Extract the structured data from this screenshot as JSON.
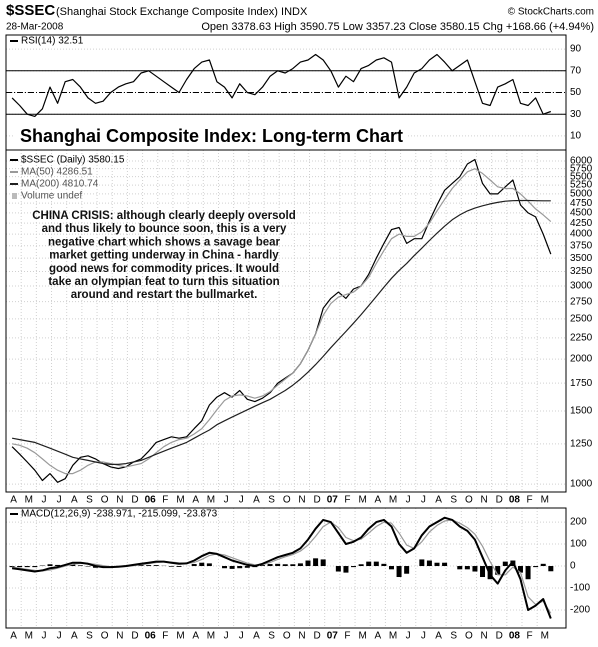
{
  "header": {
    "symbol": "$SSEC",
    "name": "(Shanghai Stock Exchange Composite Index) INDX",
    "source": "© StockCharts.com",
    "date": "28-Mar-2008",
    "quote": "Open 3378.63 High 3590.75 Low 3357.23 Close 3580.15 Chg +168.66 (+4.94%)"
  },
  "chart_data": [
    {
      "type": "line",
      "label": "RSI(14) 32.51",
      "xlim": [
        0,
        36.9
      ],
      "ylim": [
        -3,
        103
      ],
      "yticks": [
        10,
        30,
        50,
        70,
        90
      ],
      "reference_lines": [
        70,
        50,
        30
      ],
      "x": [
        0.4,
        0.9,
        1.4,
        1.9,
        2.4,
        2.9,
        3.4,
        3.9,
        4.4,
        4.9,
        5.4,
        5.9,
        6.4,
        6.9,
        7.4,
        7.9,
        8.4,
        8.9,
        9.4,
        9.9,
        10.4,
        10.9,
        11.4,
        11.9,
        12.4,
        12.9,
        13.4,
        13.9,
        14.4,
        14.9,
        15.4,
        15.9,
        16.4,
        16.9,
        17.4,
        17.9,
        18.4,
        18.9,
        19.4,
        19.9,
        20.4,
        20.9,
        21.4,
        21.9,
        22.4,
        22.9,
        23.4,
        23.9,
        24.4,
        24.9,
        25.4,
        25.9,
        26.4,
        26.9,
        27.4,
        27.9,
        28.4,
        28.9,
        29.4,
        29.9,
        30.4,
        30.9,
        31.4,
        31.9,
        32.4,
        32.9,
        33.4,
        33.9,
        34.4,
        34.9,
        35.4,
        35.9
      ],
      "series": [
        {
          "color": "#000000",
          "values": [
            45,
            38,
            30,
            28,
            35,
            55,
            40,
            60,
            62,
            55,
            45,
            40,
            42,
            50,
            55,
            58,
            60,
            68,
            70,
            65,
            60,
            55,
            50,
            62,
            72,
            78,
            80,
            60,
            55,
            45,
            58,
            50,
            48,
            55,
            65,
            70,
            68,
            72,
            78,
            80,
            85,
            80,
            70,
            55,
            65,
            60,
            72,
            75,
            80,
            82,
            78,
            45,
            55,
            68,
            72,
            80,
            85,
            78,
            70,
            75,
            80,
            60,
            40,
            38,
            55,
            58,
            62,
            40,
            38,
            45,
            30,
            32.51
          ]
        }
      ]
    },
    {
      "type": "line",
      "title": "Shanghai Composite Index: Long-term Chart",
      "log_scale": true,
      "xlim": [
        0,
        36.9
      ],
      "ylim": [
        957,
        6377
      ],
      "yticks": [
        1000,
        1250,
        1500,
        1750,
        2000,
        2250,
        2500,
        2750,
        3000,
        3250,
        3500,
        3750,
        4000,
        4250,
        4500,
        4750,
        5000,
        5250,
        5500,
        5750,
        6000
      ],
      "xticks": [
        {
          "value": 0,
          "label": "A"
        },
        {
          "value": 1,
          "label": "M"
        },
        {
          "value": 2,
          "label": "J"
        },
        {
          "value": 3,
          "label": "J"
        },
        {
          "value": 4,
          "label": "A"
        },
        {
          "value": 5,
          "label": "S"
        },
        {
          "value": 6,
          "label": "O"
        },
        {
          "value": 7,
          "label": "N"
        },
        {
          "value": 8,
          "label": "D"
        },
        {
          "value": 9,
          "label": "06"
        },
        {
          "value": 10,
          "label": "F"
        },
        {
          "value": 11,
          "label": "M"
        },
        {
          "value": 12,
          "label": "A"
        },
        {
          "value": 13,
          "label": "M"
        },
        {
          "value": 14,
          "label": "J"
        },
        {
          "value": 15,
          "label": "J"
        },
        {
          "value": 16,
          "label": "A"
        },
        {
          "value": 17,
          "label": "S"
        },
        {
          "value": 18,
          "label": "O"
        },
        {
          "value": 19,
          "label": "N"
        },
        {
          "value": 20,
          "label": "D"
        },
        {
          "value": 21,
          "label": "07"
        },
        {
          "value": 22,
          "label": "F"
        },
        {
          "value": 23,
          "label": "M"
        },
        {
          "value": 24,
          "label": "A"
        },
        {
          "value": 25,
          "label": "M"
        },
        {
          "value": 26,
          "label": "J"
        },
        {
          "value": 27,
          "label": "J"
        },
        {
          "value": 28,
          "label": "A"
        },
        {
          "value": 29,
          "label": "S"
        },
        {
          "value": 30,
          "label": "O"
        },
        {
          "value": 31,
          "label": "N"
        },
        {
          "value": 32,
          "label": "D"
        },
        {
          "value": 33,
          "label": "08"
        },
        {
          "value": 34,
          "label": "F"
        },
        {
          "value": 35,
          "label": "M"
        }
      ],
      "annotation": [
        "CHINA CRISIS: although clearly deeply oversold",
        "and thus likely to bounce soon, this is a very",
        "negative chart which shows a savage bear",
        "market getting underway in China - hardly",
        "good news for commodity prices. It would",
        "take an olympian feat to turn this situation",
        "around and restart the bullmarket."
      ],
      "legend_extra": "Volume undef",
      "x": [
        0.4,
        0.9,
        1.4,
        1.9,
        2.4,
        2.9,
        3.4,
        3.9,
        4.4,
        4.9,
        5.4,
        5.9,
        6.4,
        6.9,
        7.4,
        7.9,
        8.4,
        8.9,
        9.4,
        9.9,
        10.4,
        10.9,
        11.4,
        11.9,
        12.4,
        12.9,
        13.4,
        13.9,
        14.4,
        14.9,
        15.4,
        15.9,
        16.4,
        16.9,
        17.4,
        17.9,
        18.4,
        18.9,
        19.4,
        19.9,
        20.4,
        20.9,
        21.4,
        21.9,
        22.4,
        22.9,
        23.4,
        23.9,
        24.4,
        24.9,
        25.4,
        25.9,
        26.4,
        26.9,
        27.4,
        27.9,
        28.4,
        28.9,
        29.4,
        29.9,
        30.4,
        30.9,
        31.4,
        31.9,
        32.4,
        32.9,
        33.4,
        33.9,
        34.4,
        34.9,
        35.4,
        35.9
      ],
      "series": [
        {
          "name": "$SSEC (Daily) 3580.15",
          "color": "#000000",
          "values": [
            1230,
            1180,
            1130,
            1080,
            1020,
            1060,
            1010,
            1030,
            1110,
            1160,
            1170,
            1150,
            1120,
            1100,
            1090,
            1100,
            1130,
            1150,
            1200,
            1260,
            1280,
            1300,
            1290,
            1300,
            1360,
            1420,
            1550,
            1620,
            1660,
            1620,
            1680,
            1600,
            1580,
            1610,
            1660,
            1750,
            1800,
            1850,
            1950,
            2100,
            2300,
            2650,
            2800,
            2900,
            2800,
            2950,
            3000,
            3200,
            3500,
            3800,
            4100,
            4150,
            3800,
            3900,
            3900,
            4300,
            4700,
            5100,
            5300,
            5500,
            5900,
            6050,
            5300,
            5000,
            5000,
            5200,
            5400,
            4700,
            4500,
            4400,
            4000,
            3580.15
          ]
        },
        {
          "name": "MA(50) 4286.51",
          "color": "#9a9a9a",
          "values": [
            1250,
            1240,
            1220,
            1190,
            1150,
            1110,
            1080,
            1060,
            1060,
            1080,
            1110,
            1130,
            1130,
            1120,
            1110,
            1100,
            1110,
            1120,
            1150,
            1190,
            1230,
            1260,
            1280,
            1290,
            1320,
            1360,
            1430,
            1510,
            1590,
            1630,
            1640,
            1630,
            1610,
            1630,
            1670,
            1730,
            1790,
            1850,
            1950,
            2100,
            2300,
            2550,
            2720,
            2820,
            2860,
            2900,
            3000,
            3150,
            3400,
            3650,
            3900,
            4000,
            3950,
            3950,
            4050,
            4250,
            4550,
            4850,
            5150,
            5400,
            5650,
            5750,
            5600,
            5400,
            5200,
            5150,
            5150,
            5000,
            4800,
            4600,
            4450,
            4286.51
          ]
        },
        {
          "name": "MA(200) 4810.74",
          "color": "#202020",
          "values": [
            1290,
            1280,
            1270,
            1260,
            1240,
            1220,
            1200,
            1180,
            1160,
            1150,
            1140,
            1130,
            1120,
            1115,
            1115,
            1120,
            1130,
            1140,
            1160,
            1180,
            1200,
            1220,
            1240,
            1260,
            1290,
            1320,
            1350,
            1390,
            1420,
            1450,
            1480,
            1510,
            1540,
            1570,
            1600,
            1640,
            1680,
            1730,
            1790,
            1860,
            1940,
            2030,
            2130,
            2230,
            2330,
            2440,
            2560,
            2690,
            2830,
            2980,
            3130,
            3270,
            3400,
            3550,
            3700,
            3860,
            4020,
            4180,
            4330,
            4450,
            4550,
            4620,
            4680,
            4730,
            4770,
            4800,
            4815,
            4820,
            4820,
            4815,
            4810,
            4810.74
          ]
        }
      ]
    },
    {
      "type": "line",
      "label": "MACD(12,26,9) -238.971, -215.099, -23.873",
      "xlim": [
        0,
        36.9
      ],
      "ylim": [
        -282,
        264
      ],
      "yticks": [
        -200,
        -100,
        0,
        100,
        200
      ],
      "xticks": [
        {
          "value": 0,
          "label": "A"
        },
        {
          "value": 1,
          "label": "M"
        },
        {
          "value": 2,
          "label": "J"
        },
        {
          "value": 3,
          "label": "J"
        },
        {
          "value": 4,
          "label": "A"
        },
        {
          "value": 5,
          "label": "S"
        },
        {
          "value": 6,
          "label": "O"
        },
        {
          "value": 7,
          "label": "N"
        },
        {
          "value": 8,
          "label": "D"
        },
        {
          "value": 9,
          "label": "06"
        },
        {
          "value": 10,
          "label": "F"
        },
        {
          "value": 11,
          "label": "M"
        },
        {
          "value": 12,
          "label": "A"
        },
        {
          "value": 13,
          "label": "M"
        },
        {
          "value": 14,
          "label": "J"
        },
        {
          "value": 15,
          "label": "J"
        },
        {
          "value": 16,
          "label": "A"
        },
        {
          "value": 17,
          "label": "S"
        },
        {
          "value": 18,
          "label": "O"
        },
        {
          "value": 19,
          "label": "N"
        },
        {
          "value": 20,
          "label": "D"
        },
        {
          "value": 21,
          "label": "07"
        },
        {
          "value": 22,
          "label": "F"
        },
        {
          "value": 23,
          "label": "M"
        },
        {
          "value": 24,
          "label": "A"
        },
        {
          "value": 25,
          "label": "M"
        },
        {
          "value": 26,
          "label": "J"
        },
        {
          "value": 27,
          "label": "J"
        },
        {
          "value": 28,
          "label": "A"
        },
        {
          "value": 29,
          "label": "S"
        },
        {
          "value": 30,
          "label": "O"
        },
        {
          "value": 31,
          "label": "N"
        },
        {
          "value": 32,
          "label": "D"
        },
        {
          "value": 33,
          "label": "08"
        },
        {
          "value": 34,
          "label": "F"
        },
        {
          "value": 35,
          "label": "M"
        }
      ],
      "x": [
        0.4,
        0.9,
        1.4,
        1.9,
        2.4,
        2.9,
        3.4,
        3.9,
        4.4,
        4.9,
        5.4,
        5.9,
        6.4,
        6.9,
        7.4,
        7.9,
        8.4,
        8.9,
        9.4,
        9.9,
        10.4,
        10.9,
        11.4,
        11.9,
        12.4,
        12.9,
        13.4,
        13.9,
        14.4,
        14.9,
        15.4,
        15.9,
        16.4,
        16.9,
        17.4,
        17.9,
        18.4,
        18.9,
        19.4,
        19.9,
        20.4,
        20.9,
        21.4,
        21.9,
        22.4,
        22.9,
        23.4,
        23.9,
        24.4,
        24.9,
        25.4,
        25.9,
        26.4,
        26.9,
        27.4,
        27.9,
        28.4,
        28.9,
        29.4,
        29.9,
        30.4,
        30.9,
        31.4,
        31.9,
        32.4,
        32.9,
        33.4,
        33.9,
        34.4,
        34.9,
        35.4,
        35.9
      ],
      "series": [
        {
          "type": "bar",
          "color": "#000000",
          "values": [
            -5,
            -5,
            -5,
            -5,
            2,
            8,
            5,
            5,
            7,
            3,
            -2,
            -8,
            -7,
            -2,
            1,
            2,
            3,
            4,
            4,
            4,
            1,
            -3,
            -4,
            0,
            9,
            15,
            12,
            0,
            -10,
            -13,
            -10,
            -8,
            -5,
            4,
            9,
            10,
            8,
            8,
            12,
            25,
            35,
            30,
            0,
            -25,
            -30,
            -5,
            8,
            20,
            20,
            10,
            -15,
            -50,
            -35,
            0,
            30,
            25,
            15,
            15,
            0,
            -15,
            -15,
            -25,
            -50,
            -60,
            -40,
            20,
            25,
            -30,
            -60,
            -5,
            10,
            -23.873
          ]
        },
        {
          "type": "line",
          "color": "#9a9a9a",
          "values": [
            -5,
            -10,
            -15,
            -20,
            -22,
            -18,
            -10,
            0,
            8,
            12,
            12,
            8,
            2,
            -3,
            -4,
            -2,
            2,
            6,
            11,
            16,
            19,
            18,
            14,
            12,
            16,
            30,
            48,
            55,
            50,
            38,
            25,
            13,
            5,
            6,
            16,
            30,
            42,
            52,
            68,
            95,
            135,
            180,
            200,
            175,
            130,
            115,
            122,
            150,
            180,
            200,
            195,
            150,
            95,
            80,
            110,
            155,
            185,
            205,
            210,
            195,
            175,
            145,
            90,
            20,
            -40,
            -40,
            -5,
            -30,
            -140,
            -175,
            -160,
            -215.099
          ]
        },
        {
          "type": "line",
          "color": "#000000",
          "width": 2,
          "values": [
            -10,
            -15,
            -20,
            -25,
            -20,
            -10,
            -5,
            5,
            15,
            15,
            10,
            0,
            -5,
            -5,
            -3,
            0,
            5,
            10,
            15,
            20,
            20,
            15,
            10,
            12,
            25,
            45,
            60,
            55,
            40,
            25,
            15,
            5,
            0,
            10,
            25,
            40,
            50,
            60,
            80,
            120,
            170,
            210,
            200,
            150,
            100,
            110,
            130,
            170,
            200,
            210,
            180,
            100,
            60,
            80,
            140,
            180,
            200,
            220,
            210,
            180,
            160,
            120,
            40,
            -40,
            -80,
            -20,
            20,
            -60,
            -200,
            -180,
            -150,
            -238.971
          ]
        }
      ]
    }
  ]
}
